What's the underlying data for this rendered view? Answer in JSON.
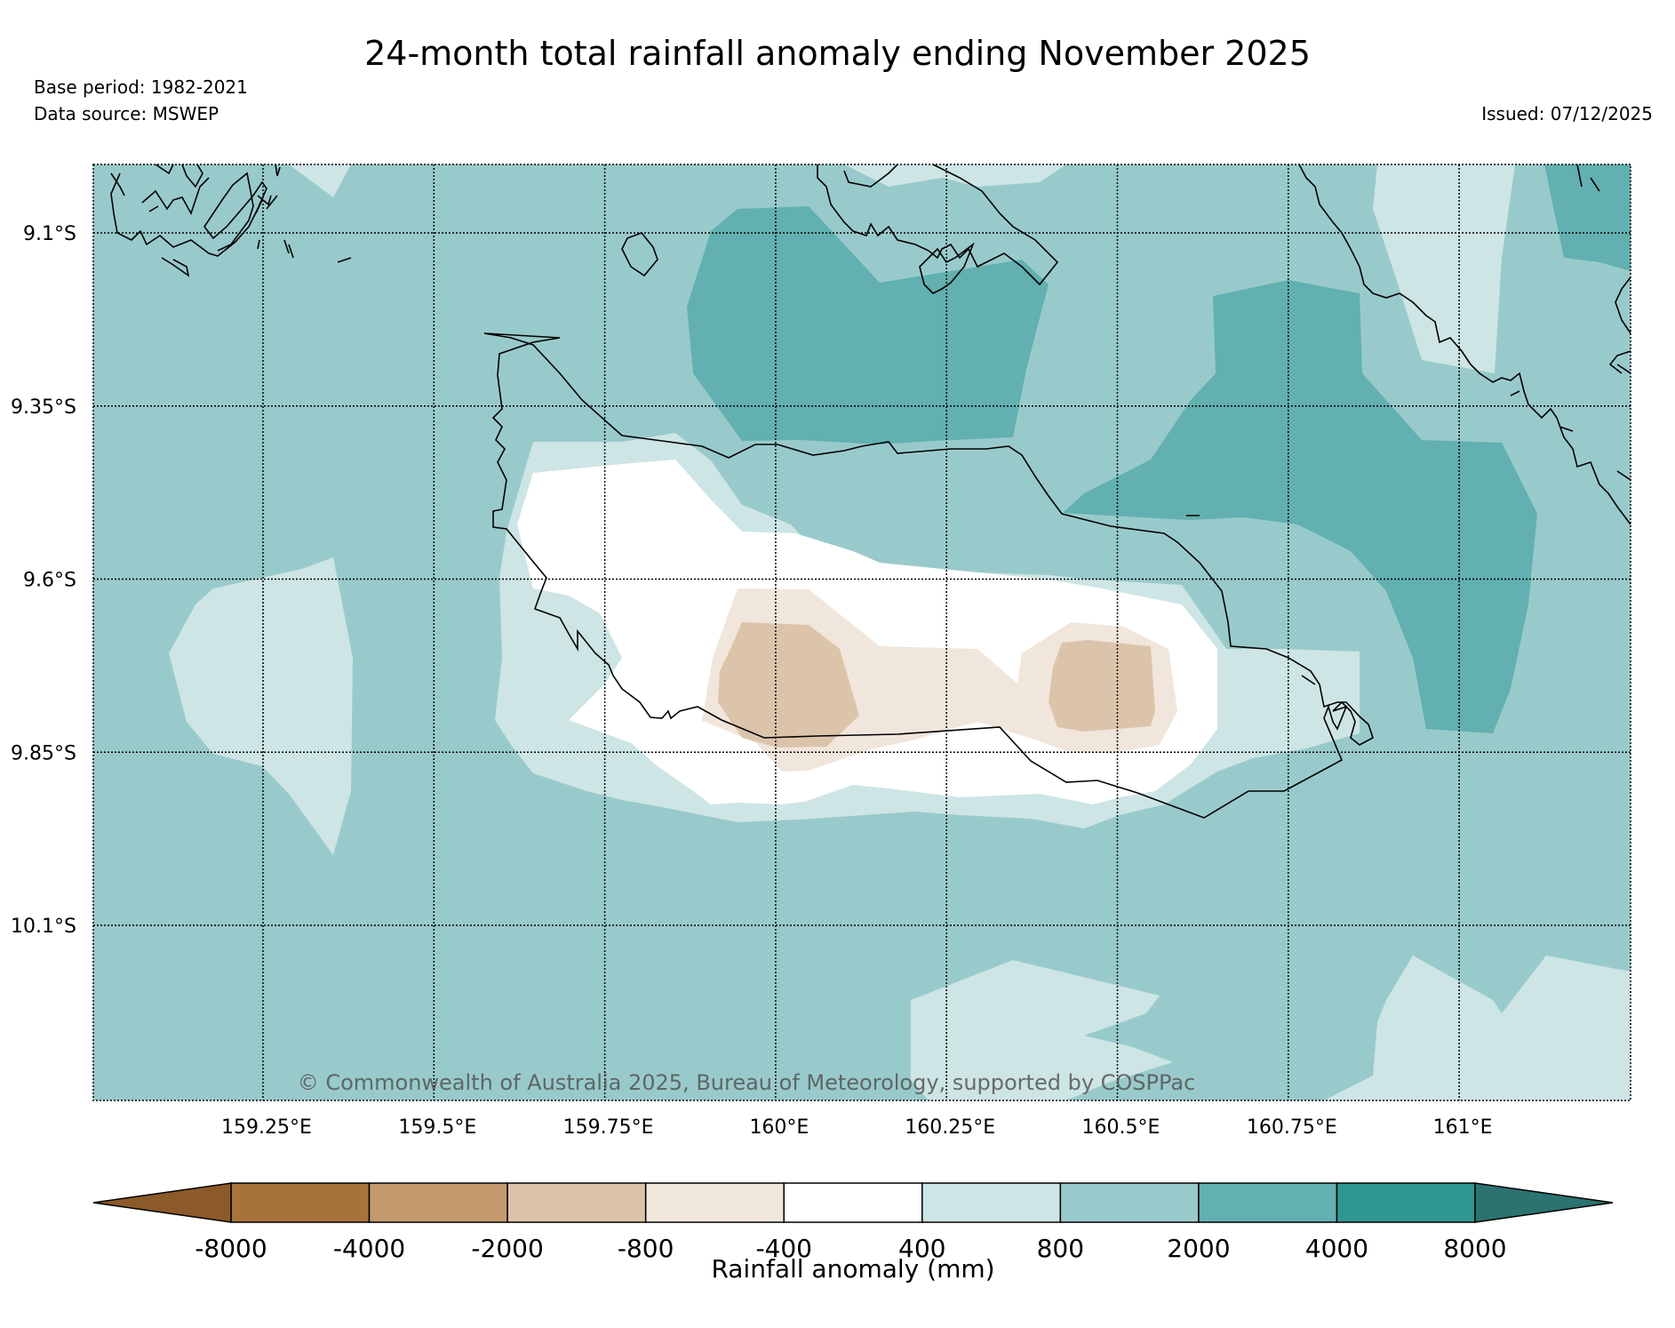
{
  "title": "24-month total rainfall anomaly ending November 2025",
  "base_period": "Base period: 1982-2021",
  "data_source": "Data source: MSWEP",
  "issued": "Issued: 07/12/2025",
  "copyright": "© Commonwealth of Australia 2025, Bureau of Meteorology, supported by COSPPac",
  "map": {
    "lat_labels": [
      "9.1°S",
      "9.35°S",
      "9.6°S",
      "9.85°S",
      "10.1°S"
    ],
    "lon_labels": [
      "159.25°E",
      "159.5°E",
      "159.75°E",
      "160°E",
      "160.25°E",
      "160.5°E",
      "160.75°E",
      "161°E"
    ],
    "lat_values": [
      -9.1,
      -9.35,
      -9.6,
      -9.85,
      -10.1
    ],
    "lon_values": [
      159.25,
      159.5,
      159.75,
      160.0,
      160.25,
      160.5,
      160.75,
      161.0
    ],
    "lon_range": [
      159.0,
      161.25
    ],
    "lat_range": [
      -10.35,
      -9.0
    ]
  },
  "colorbar": {
    "title": "Rainfall anomaly (mm)",
    "ticks": [
      "-8000",
      "-4000",
      "-2000",
      "-800",
      "-400",
      "400",
      "800",
      "2000",
      "4000",
      "8000"
    ],
    "low_extend_color": "#8c5a28",
    "high_extend_color": "#2a7370",
    "colors": [
      "#a8733a",
      "#c49a6e",
      "#dcc4ab",
      "#f1e6dc",
      "#ffffff",
      "#cde5e4",
      "#99cacb",
      "#62b0b0",
      "#2f9793"
    ]
  },
  "fill_colors": {
    "c800": "#99cacb",
    "c2000": "#62b0b0",
    "c400": "#cde5e4",
    "cneg": "#ffffff",
    "cm800": "#f1e6dc",
    "cm2000": "#dcc4ab"
  }
}
